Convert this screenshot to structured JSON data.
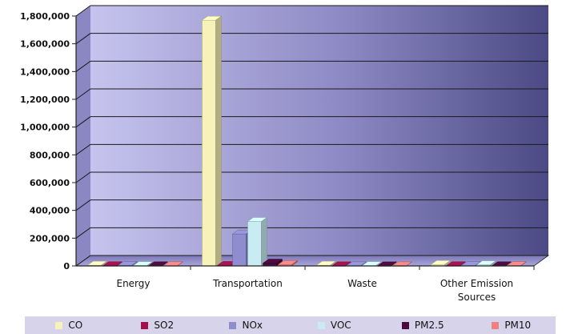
{
  "chart_data": {
    "type": "bar",
    "categories": [
      "Energy",
      "Transportation",
      "Waste",
      "Other Emission Sources"
    ],
    "category_labels": [
      [
        "Energy"
      ],
      [
        "Transportation"
      ],
      [
        "Waste"
      ],
      [
        "Other Emission",
        "Sources"
      ]
    ],
    "series": [
      {
        "name": "CO",
        "color": "#f6f2b8",
        "values": [
          5000,
          1770000,
          5000,
          10000
        ]
      },
      {
        "name": "SO2",
        "color": "#a0104a",
        "values": [
          1000,
          3000,
          500,
          1000
        ]
      },
      {
        "name": "NOx",
        "color": "#8f8ccf",
        "values": [
          3000,
          230000,
          1000,
          2000
        ]
      },
      {
        "name": "VOC",
        "color": "#c9ecf3",
        "values": [
          2000,
          320000,
          2000,
          8000
        ]
      },
      {
        "name": "PM2.5",
        "color": "#4a0a3c",
        "values": [
          1000,
          20000,
          500,
          1000
        ]
      },
      {
        "name": "PM10",
        "color": "#f08080",
        "values": [
          1000,
          10000,
          500,
          2000
        ]
      }
    ],
    "ylim": [
      0,
      1800000
    ],
    "yticks": [
      0,
      200000,
      400000,
      600000,
      800000,
      1000000,
      1200000,
      1400000,
      1600000,
      1800000
    ],
    "ytick_labels": [
      "0",
      "200,000",
      "400,000",
      "600,000",
      "800,000",
      "1,000,000",
      "1,200,000",
      "1,400,000",
      "1,600,000",
      "1,800,000"
    ],
    "grid": true,
    "legend_position": "bottom",
    "title": "",
    "xlabel": "",
    "ylabel": ""
  }
}
